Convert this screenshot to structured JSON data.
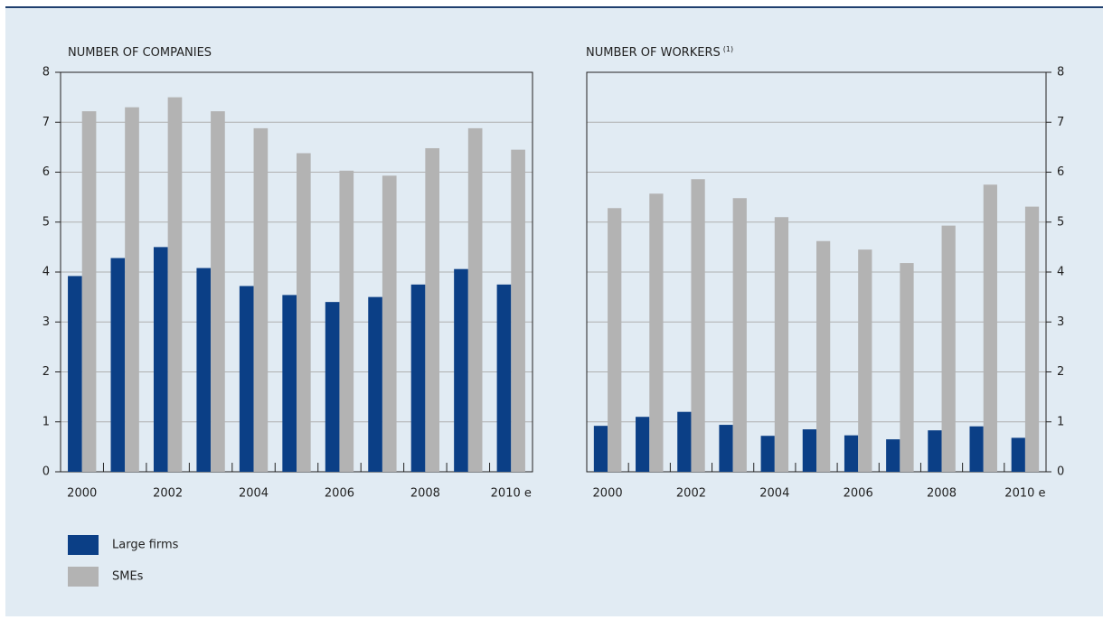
{
  "chart_data": [
    {
      "type": "bar",
      "title": "NUMBER OF COMPANIES",
      "categories": [
        "2000",
        null,
        "2002",
        null,
        "2004",
        null,
        "2006",
        null,
        "2008",
        null,
        "2010 e"
      ],
      "series": [
        {
          "name": "Large firms",
          "color": "#0b3f86",
          "values": [
            3.92,
            4.28,
            4.5,
            4.08,
            3.72,
            3.54,
            3.4,
            3.5,
            3.75,
            4.06,
            3.75
          ]
        },
        {
          "name": "SMEs",
          "color": "#b3b3b3",
          "values": [
            7.22,
            7.3,
            7.5,
            7.22,
            6.88,
            6.38,
            6.03,
            5.93,
            6.48,
            6.88,
            6.45
          ]
        }
      ],
      "ylim": [
        0,
        8
      ],
      "yticks": [
        0,
        1,
        2,
        3,
        4,
        5,
        6,
        7,
        8
      ],
      "grid": true,
      "y_axis_side": "left"
    },
    {
      "type": "bar",
      "title": "NUMBER OF WORKERS",
      "title_note": "(1)",
      "categories": [
        "2000",
        null,
        "2002",
        null,
        "2004",
        null,
        "2006",
        null,
        "2008",
        null,
        "2010 e"
      ],
      "series": [
        {
          "color": "#0b3f86",
          "values": [
            0.92,
            1.1,
            1.2,
            0.94,
            0.72,
            0.85,
            0.73,
            0.65,
            0.83,
            0.91,
            0.68
          ]
        },
        {
          "color": "#b3b3b3",
          "values": [
            5.28,
            5.57,
            5.86,
            5.48,
            5.1,
            4.62,
            4.45,
            4.18,
            4.93,
            5.75,
            5.31
          ]
        }
      ],
      "ylim": [
        0,
        8
      ],
      "yticks": [
        0,
        1,
        2,
        3,
        4,
        5,
        6,
        7,
        8
      ],
      "grid": true,
      "y_axis_side": "right"
    }
  ]
}
